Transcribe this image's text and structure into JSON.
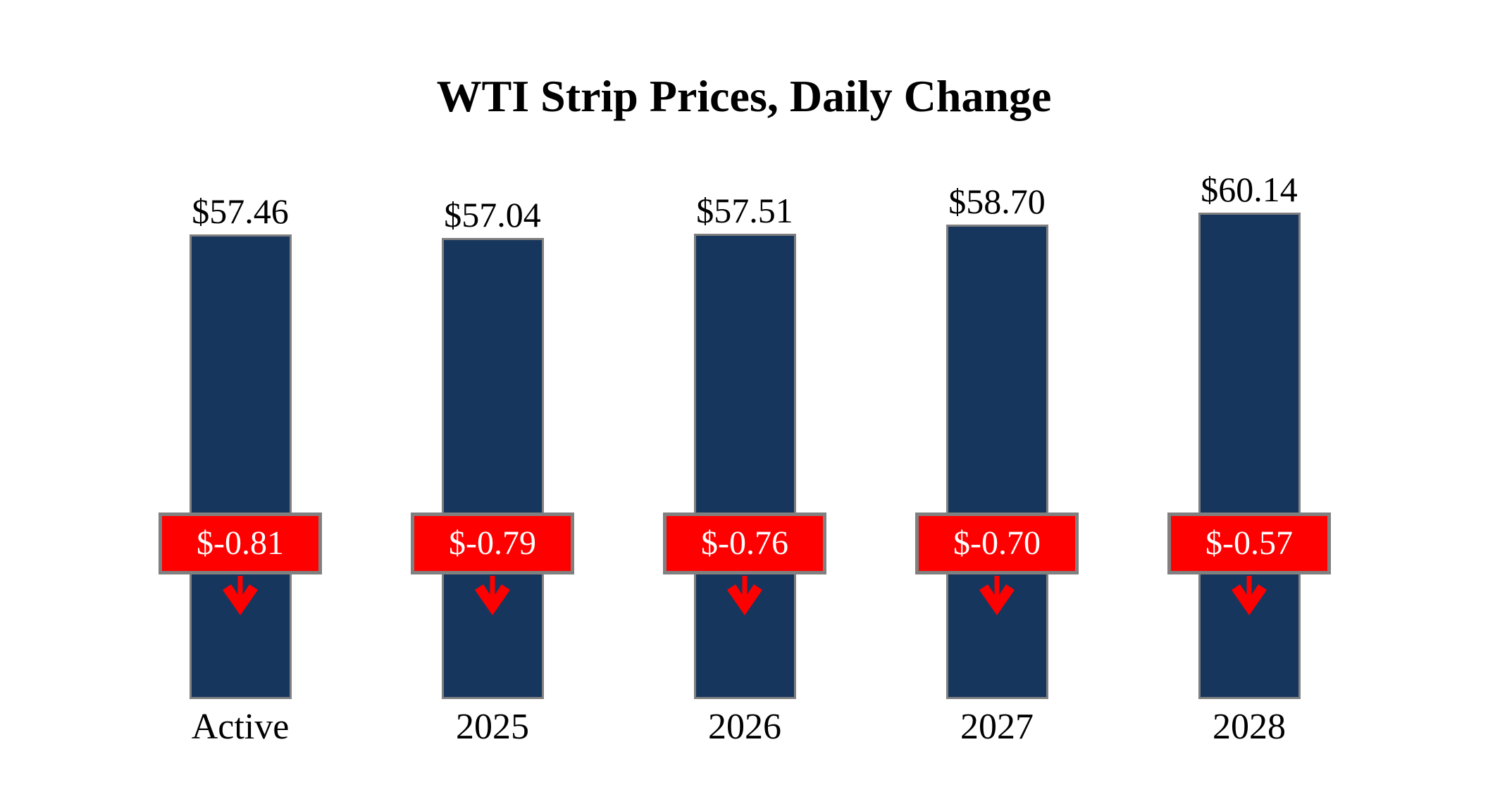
{
  "chart_data": {
    "type": "bar",
    "title": "WTI Strip Prices, Daily Change",
    "categories": [
      "Active",
      "2025",
      "2026",
      "2027",
      "2028"
    ],
    "series": [
      {
        "name": "WTI strip price",
        "values": [
          57.46,
          57.04,
          57.51,
          58.7,
          60.14
        ]
      },
      {
        "name": "Daily change",
        "values": [
          -0.81,
          -0.79,
          -0.76,
          -0.7,
          -0.57
        ]
      }
    ],
    "ylim": [
      0,
      65
    ],
    "grid": false,
    "legend_position": "none",
    "bars": [
      {
        "category": "Active",
        "price": 57.46,
        "price_label": "$57.46",
        "change": -0.81,
        "change_label": "$-0.81"
      },
      {
        "category": "2025",
        "price": 57.04,
        "price_label": "$57.04",
        "change": -0.79,
        "change_label": "$-0.79"
      },
      {
        "category": "2026",
        "price": 57.51,
        "price_label": "$57.51",
        "change": -0.76,
        "change_label": "$-0.76"
      },
      {
        "category": "2027",
        "price": 58.7,
        "price_label": "$58.70",
        "change": -0.7,
        "change_label": "$-0.70"
      },
      {
        "category": "2028",
        "price": 60.14,
        "price_label": "$60.14",
        "change": -0.57,
        "change_label": "$-0.57"
      }
    ],
    "icons": {
      "change_direction": "down-arrow-icon"
    },
    "colors": {
      "background": "#FFFFFF",
      "bar_fill": "#17365D",
      "bar_border": "#808080",
      "change_badge_fill": "#FF0000",
      "change_badge_border": "#808080",
      "change_badge_text": "#FFFFFF",
      "arrow": "#FF0000",
      "label_text": "#000000"
    }
  }
}
